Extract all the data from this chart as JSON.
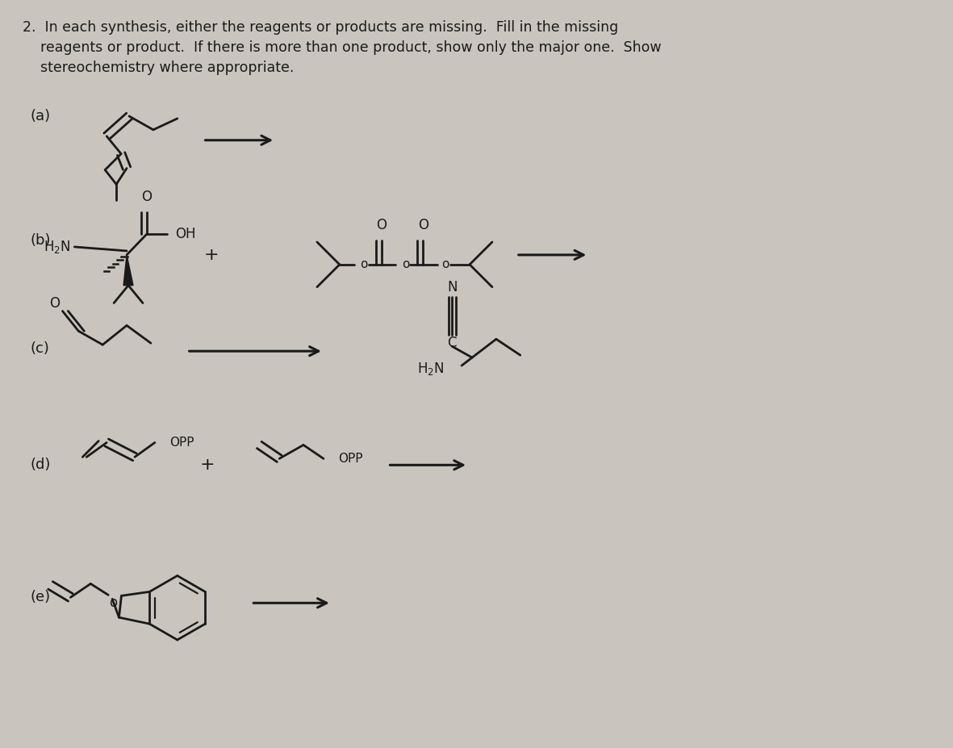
{
  "background_color": "#c9c5be",
  "title_line1": "2.  In each synthesis, either the reagents or products are missing.  Fill in the missing",
  "title_line2": "    reagents or product.  If there is more than one product, show only the major one.  Show",
  "title_line3": "    stereochemistry where appropriate.",
  "line_color": "#1a1a1a",
  "text_color": "#1a1a1a"
}
